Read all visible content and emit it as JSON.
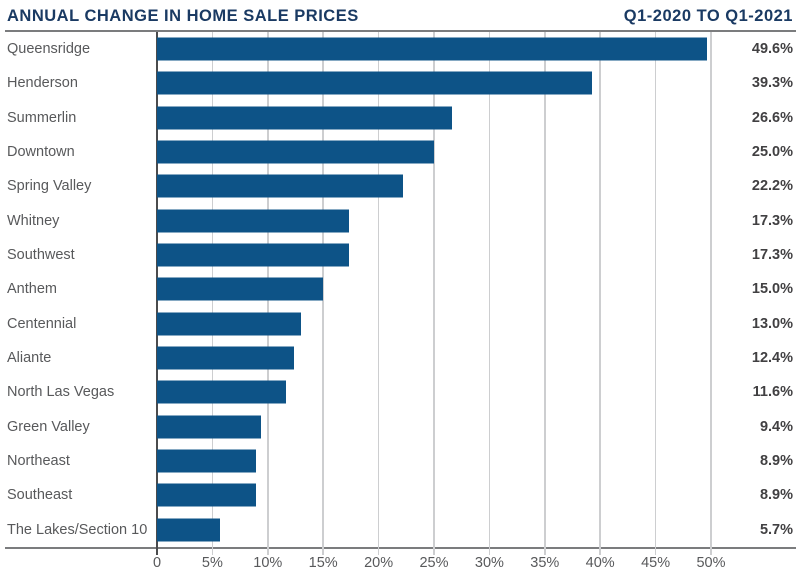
{
  "header": {
    "title": "ANNUAL CHANGE IN HOME SALE PRICES",
    "period": "Q1-2020 TO Q1-2021"
  },
  "colors": {
    "background": "#ffffff",
    "bar": "#0d5387",
    "title": "#1a3a63",
    "category_label": "#58595b",
    "value_label": "#414042",
    "tick_label": "#58595b",
    "gridline": "#cdced0",
    "zero_axis": "#4a4b4d",
    "rule": "#7b7c7e"
  },
  "chart_data": {
    "type": "bar",
    "orientation": "horizontal",
    "title": "ANNUAL CHANGE IN HOME SALE PRICES",
    "subtitle": "Q1-2020 TO Q1-2021",
    "categories": [
      "Queensridge",
      "Henderson",
      "Summerlin",
      "Downtown",
      "Spring Valley",
      "Whitney",
      "Southwest",
      "Anthem",
      "Centennial",
      "Aliante",
      "North Las Vegas",
      "Green Valley",
      "Northeast",
      "Southeast",
      "The Lakes/Section 10"
    ],
    "values": [
      49.6,
      39.3,
      26.6,
      25.0,
      22.2,
      17.3,
      17.3,
      15.0,
      13.0,
      12.4,
      11.6,
      9.4,
      8.9,
      8.9,
      5.7
    ],
    "value_labels": [
      "49.6%",
      "39.3%",
      "26.6%",
      "25.0%",
      "22.2%",
      "17.3%",
      "17.3%",
      "15.0%",
      "13.0%",
      "12.4%",
      "11.6%",
      "9.4%",
      "8.9%",
      "8.9%",
      "5.7%"
    ],
    "xlabel": "",
    "ylabel": "",
    "axis": {
      "min": 0,
      "max": 50,
      "tick_step": 5,
      "tick_values": [
        0,
        5,
        10,
        15,
        20,
        25,
        30,
        35,
        40,
        45,
        50
      ],
      "tick_labels": [
        "0",
        "5%",
        "10%",
        "15%",
        "20%",
        "25%",
        "30%",
        "35%",
        "40%",
        "45%",
        "50%"
      ]
    },
    "grid": "vertical",
    "legend": "none",
    "unit": "%"
  }
}
